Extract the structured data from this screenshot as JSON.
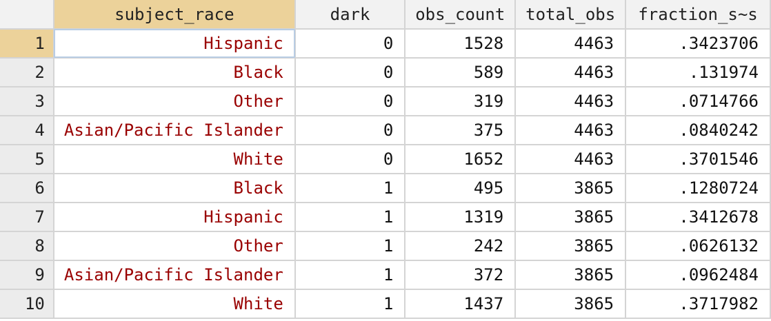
{
  "columns": [
    {
      "key": "subject_race",
      "label": "subject_race"
    },
    {
      "key": "dark",
      "label": "dark"
    },
    {
      "key": "obs_count",
      "label": "obs_count"
    },
    {
      "key": "total_obs",
      "label": "total_obs"
    },
    {
      "key": "fraction",
      "label": "fraction_s~s"
    }
  ],
  "rows": [
    {
      "n": "1",
      "subject_race": "Hispanic",
      "dark": "0",
      "obs_count": "1528",
      "total_obs": "4463",
      "fraction": ".3423706"
    },
    {
      "n": "2",
      "subject_race": "Black",
      "dark": "0",
      "obs_count": "589",
      "total_obs": "4463",
      "fraction": ".131974"
    },
    {
      "n": "3",
      "subject_race": "Other",
      "dark": "0",
      "obs_count": "319",
      "total_obs": "4463",
      "fraction": ".0714766"
    },
    {
      "n": "4",
      "subject_race": "Asian/Pacific Islander",
      "dark": "0",
      "obs_count": "375",
      "total_obs": "4463",
      "fraction": ".0840242"
    },
    {
      "n": "5",
      "subject_race": "White",
      "dark": "0",
      "obs_count": "1652",
      "total_obs": "4463",
      "fraction": ".3701546"
    },
    {
      "n": "6",
      "subject_race": "Black",
      "dark": "1",
      "obs_count": "495",
      "total_obs": "3865",
      "fraction": ".1280724"
    },
    {
      "n": "7",
      "subject_race": "Hispanic",
      "dark": "1",
      "obs_count": "1319",
      "total_obs": "3865",
      "fraction": ".3412678"
    },
    {
      "n": "8",
      "subject_race": "Other",
      "dark": "1",
      "obs_count": "242",
      "total_obs": "3865",
      "fraction": ".0626132"
    },
    {
      "n": "9",
      "subject_race": "Asian/Pacific Islander",
      "dark": "1",
      "obs_count": "372",
      "total_obs": "3865",
      "fraction": ".0962484"
    },
    {
      "n": "10",
      "subject_race": "White",
      "dark": "1",
      "obs_count": "1437",
      "total_obs": "3865",
      "fraction": ".3717982"
    }
  ],
  "selection": {
    "row": "1",
    "column": "subject_race"
  },
  "colors": {
    "string_text": "#990000",
    "selected_header": "#ecd29a",
    "grid_line": "#d4d4d4"
  }
}
